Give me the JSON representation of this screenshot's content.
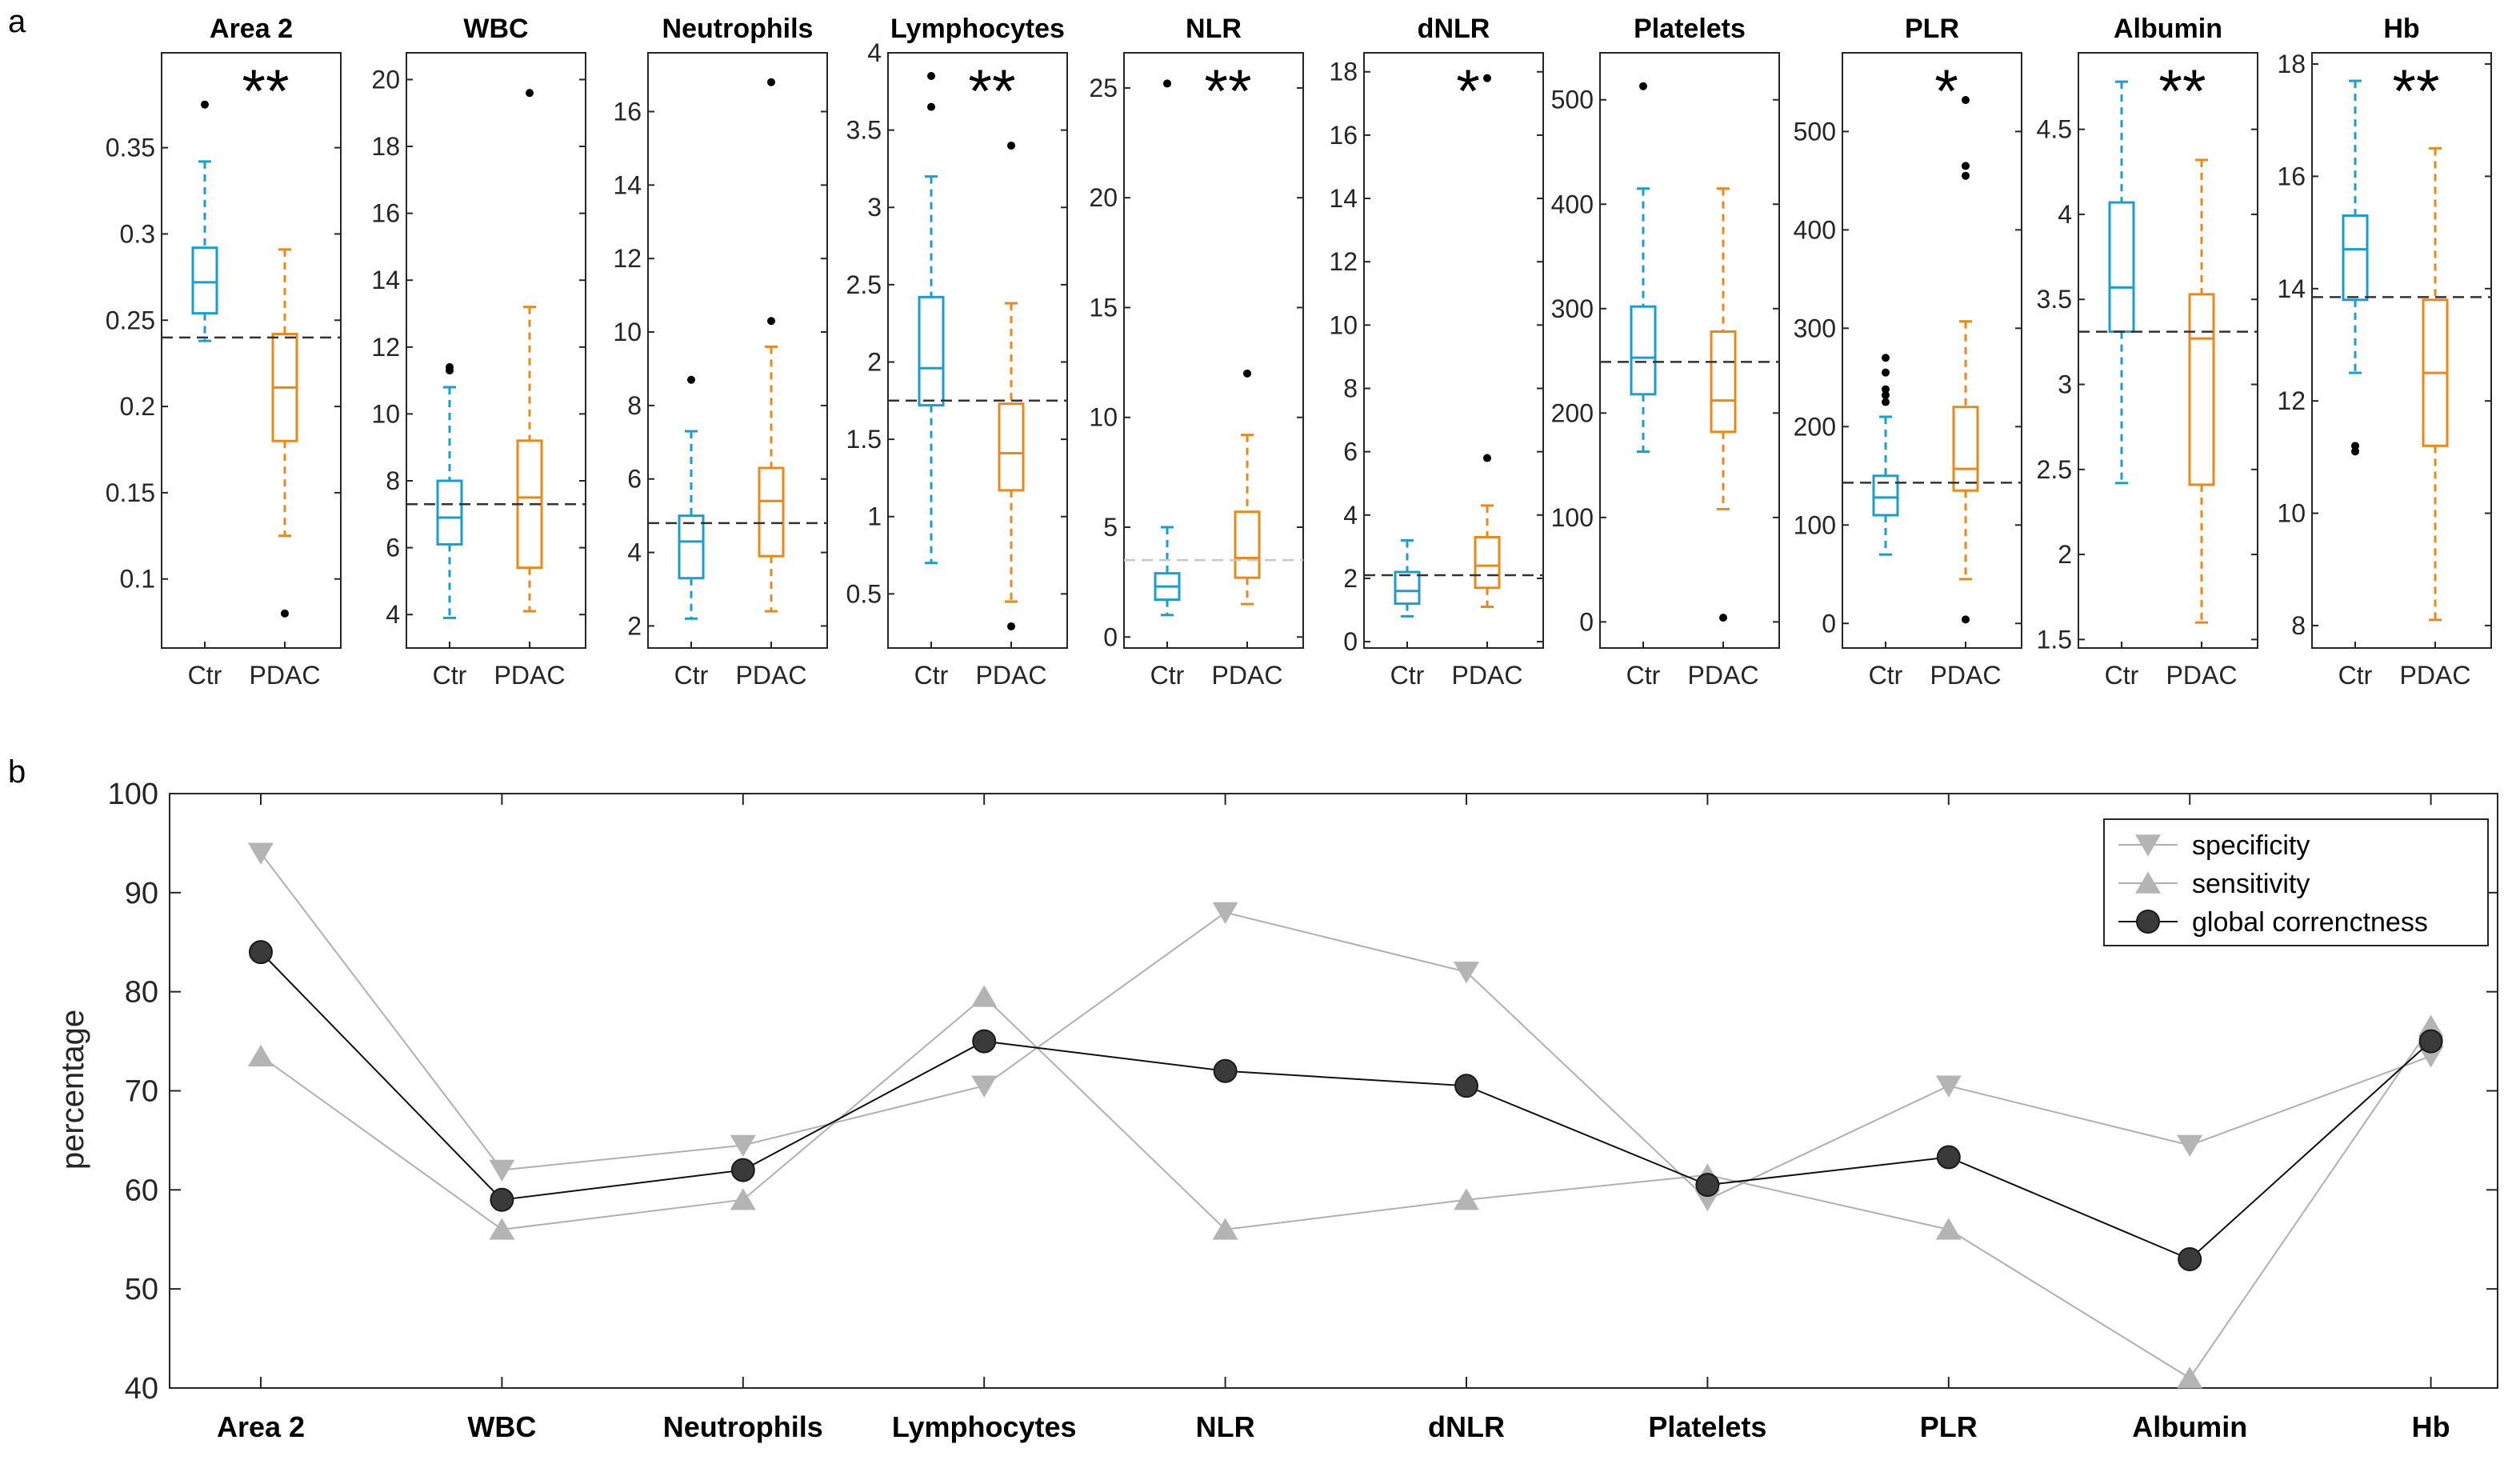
{
  "panel_labels": {
    "a": "a",
    "b": "b"
  },
  "colors": {
    "control": "#1b9ecf",
    "pdac": "#e8891a",
    "cut": "#333333",
    "cut_light": "#c8c8c8",
    "axis": "#262626",
    "outlier": "#000000",
    "line_gray": "#b0b0b0",
    "marker_gray": "#b4b4b4",
    "global": "#3a3a3a"
  },
  "chart_data": [
    {
      "type": "boxplot",
      "panel": "a",
      "group_labels": [
        "Ctr",
        "PDAC"
      ],
      "panels": [
        {
          "title": "Area 2",
          "ylim": [
            0.06,
            0.405
          ],
          "ticks": [
            0.1,
            0.15,
            0.2,
            0.25,
            0.3,
            0.35
          ],
          "tick_labels": [
            "0.1",
            "0.15",
            "0.2",
            "0.25",
            "0.3",
            "0.35"
          ],
          "cutoff": 0.24,
          "cutoff_light": false,
          "stars": "**",
          "boxes": [
            {
              "group": "Ctr",
              "low": 0.238,
              "q1": 0.254,
              "median": 0.272,
              "q3": 0.292,
              "high": 0.342,
              "outliers": [
                0.375
              ]
            },
            {
              "group": "PDAC",
              "low": 0.125,
              "q1": 0.18,
              "median": 0.211,
              "q3": 0.242,
              "high": 0.291,
              "outliers": [
                0.08
              ]
            }
          ]
        },
        {
          "title": "WBC",
          "ylim": [
            3.0,
            20.8
          ],
          "ticks": [
            4,
            6,
            8,
            10,
            12,
            14,
            16,
            18,
            20
          ],
          "tick_labels": [
            "4",
            "6",
            "8",
            "10",
            "12",
            "14",
            "16",
            "18",
            "20"
          ],
          "cutoff": 7.3,
          "cutoff_light": false,
          "stars": "",
          "boxes": [
            {
              "group": "Ctr",
              "low": 3.9,
              "q1": 6.1,
              "median": 6.9,
              "q3": 8.0,
              "high": 10.8,
              "outliers": [
                11.3,
                11.4
              ]
            },
            {
              "group": "PDAC",
              "low": 4.1,
              "q1": 5.4,
              "median": 7.5,
              "q3": 9.2,
              "high": 13.2,
              "outliers": [
                19.6
              ]
            }
          ]
        },
        {
          "title": "Neutrophils",
          "ylim": [
            1.4,
            17.6
          ],
          "ticks": [
            2,
            4,
            6,
            8,
            10,
            12,
            14,
            16
          ],
          "tick_labels": [
            "2",
            "4",
            "6",
            "8",
            "10",
            "12",
            "14",
            "16"
          ],
          "cutoff": 4.8,
          "cutoff_light": false,
          "stars": "",
          "boxes": [
            {
              "group": "Ctr",
              "low": 2.2,
              "q1": 3.3,
              "median": 4.3,
              "q3": 5.0,
              "high": 7.3,
              "outliers": [
                8.7
              ]
            },
            {
              "group": "PDAC",
              "low": 2.4,
              "q1": 3.9,
              "median": 5.4,
              "q3": 6.3,
              "high": 9.6,
              "outliers": [
                10.3,
                16.8
              ]
            }
          ]
        },
        {
          "title": "Lymphocytes",
          "ylim": [
            0.15,
            4.0
          ],
          "ticks": [
            0.5,
            1,
            1.5,
            2,
            2.5,
            3,
            3.5,
            4
          ],
          "tick_labels": [
            "0.5",
            "1",
            "1.5",
            "2",
            "2.5",
            "3",
            "3.5",
            "4"
          ],
          "cutoff": 1.75,
          "cutoff_light": false,
          "stars": "**",
          "boxes": [
            {
              "group": "Ctr",
              "low": 0.7,
              "q1": 1.72,
              "median": 1.96,
              "q3": 2.42,
              "high": 3.2,
              "outliers": [
                3.65,
                3.85
              ]
            },
            {
              "group": "PDAC",
              "low": 0.45,
              "q1": 1.17,
              "median": 1.41,
              "q3": 1.73,
              "high": 2.38,
              "outliers": [
                0.29,
                3.4
              ]
            }
          ]
        },
        {
          "title": "NLR",
          "ylim": [
            -0.5,
            26.6
          ],
          "ticks": [
            0,
            5,
            10,
            15,
            20,
            25
          ],
          "tick_labels": [
            "0",
            "5",
            "10",
            "15",
            "20",
            "25"
          ],
          "cutoff": 3.5,
          "cutoff_light": true,
          "stars": "**",
          "boxes": [
            {
              "group": "Ctr",
              "low": 1.0,
              "q1": 1.7,
              "median": 2.3,
              "q3": 2.9,
              "high": 5.0,
              "outliers": [
                25.2
              ]
            },
            {
              "group": "PDAC",
              "low": 1.5,
              "q1": 2.7,
              "median": 3.6,
              "q3": 5.7,
              "high": 9.2,
              "outliers": [
                12.0
              ]
            }
          ]
        },
        {
          "title": "dNLR",
          "ylim": [
            -0.2,
            18.6
          ],
          "ticks": [
            0,
            2,
            4,
            6,
            8,
            10,
            12,
            14,
            16,
            18
          ],
          "tick_labels": [
            "0",
            "2",
            "4",
            "6",
            "8",
            "10",
            "12",
            "14",
            "16",
            "18"
          ],
          "cutoff": 2.1,
          "cutoff_light": false,
          "stars": "*",
          "boxes": [
            {
              "group": "Ctr",
              "low": 0.8,
              "q1": 1.2,
              "median": 1.6,
              "q3": 2.2,
              "high": 3.2,
              "outliers": []
            },
            {
              "group": "PDAC",
              "low": 1.1,
              "q1": 1.7,
              "median": 2.4,
              "q3": 3.3,
              "high": 4.3,
              "outliers": [
                5.8,
                17.8
              ]
            }
          ]
        },
        {
          "title": "Platelets",
          "ylim": [
            -25,
            545
          ],
          "ticks": [
            0,
            100,
            200,
            300,
            400,
            500
          ],
          "tick_labels": [
            "0",
            "100",
            "200",
            "300",
            "400",
            "500"
          ],
          "cutoff": 249,
          "cutoff_light": false,
          "stars": "",
          "boxes": [
            {
              "group": "Ctr",
              "low": 163,
              "q1": 218,
              "median": 253,
              "q3": 302,
              "high": 415,
              "outliers": [
                513
              ]
            },
            {
              "group": "PDAC",
              "low": 108,
              "q1": 182,
              "median": 212,
              "q3": 278,
              "high": 415,
              "outliers": [
                4
              ]
            }
          ]
        },
        {
          "title": "PLR",
          "ylim": [
            -25,
            580
          ],
          "ticks": [
            0,
            100,
            200,
            300,
            400,
            500
          ],
          "tick_labels": [
            "0",
            "100",
            "200",
            "300",
            "400",
            "500"
          ],
          "cutoff": 143,
          "cutoff_light": false,
          "stars": "*",
          "boxes": [
            {
              "group": "Ctr",
              "low": 70,
              "q1": 110,
              "median": 128,
              "q3": 150,
              "high": 210,
              "outliers": [
                225,
                232,
                238,
                255,
                270
              ]
            },
            {
              "group": "PDAC",
              "low": 45,
              "q1": 135,
              "median": 157,
              "q3": 220,
              "high": 307,
              "outliers": [
                4,
                455,
                465,
                532
              ]
            }
          ]
        },
        {
          "title": "Albumin",
          "ylim": [
            1.45,
            4.95
          ],
          "ticks": [
            1.5,
            2,
            2.5,
            3,
            3.5,
            4,
            4.5
          ],
          "tick_labels": [
            "1.5",
            "2",
            "2.5",
            "3",
            "3.5",
            "4",
            "4.5"
          ],
          "cutoff": 3.31,
          "cutoff_light": false,
          "stars": "**",
          "boxes": [
            {
              "group": "Ctr",
              "low": 2.42,
              "q1": 3.31,
              "median": 3.57,
              "q3": 4.07,
              "high": 4.78,
              "outliers": []
            },
            {
              "group": "PDAC",
              "low": 1.6,
              "q1": 2.41,
              "median": 3.27,
              "q3": 3.53,
              "high": 4.32,
              "outliers": []
            }
          ]
        },
        {
          "title": "Hb",
          "ylim": [
            7.6,
            18.2
          ],
          "ticks": [
            8,
            10,
            12,
            14,
            16,
            18
          ],
          "tick_labels": [
            "8",
            "10",
            "12",
            "14",
            "16",
            "18"
          ],
          "cutoff": 13.85,
          "cutoff_light": false,
          "stars": "**",
          "boxes": [
            {
              "group": "Ctr",
              "low": 12.5,
              "q1": 13.8,
              "median": 14.7,
              "q3": 15.3,
              "high": 17.7,
              "outliers": [
                11.1,
                11.2
              ]
            },
            {
              "group": "PDAC",
              "low": 8.1,
              "q1": 11.2,
              "median": 12.5,
              "q3": 13.8,
              "high": 16.5,
              "outliers": []
            }
          ]
        }
      ]
    },
    {
      "type": "line",
      "panel": "b",
      "categories": [
        "Area 2",
        "WBC",
        "Neutrophils",
        "Lymphocytes",
        "NLR",
        "dNLR",
        "Platelets",
        "PLR",
        "Albumin",
        "Hb"
      ],
      "ylabel": "percentage",
      "ylim": [
        40,
        100
      ],
      "yticks": [
        40,
        50,
        60,
        70,
        80,
        90,
        100
      ],
      "ytick_labels": [
        "40",
        "50",
        "60",
        "70",
        "80",
        "90",
        "100"
      ],
      "legend_position": "top-right",
      "series": [
        {
          "name": "specificity",
          "marker": "triangle-down",
          "values": [
            94,
            62,
            64.5,
            70.5,
            88,
            82,
            59,
            70.5,
            64.5,
            73.5
          ]
        },
        {
          "name": "sensitivity",
          "marker": "triangle-up",
          "values": [
            73.5,
            56,
            59,
            79.5,
            56,
            59,
            61.5,
            56,
            41,
            76.5
          ]
        },
        {
          "name": "global correnctness",
          "marker": "circle",
          "values": [
            84,
            59,
            62,
            75,
            72,
            70.5,
            60.5,
            63.3,
            53,
            75
          ]
        }
      ]
    }
  ]
}
